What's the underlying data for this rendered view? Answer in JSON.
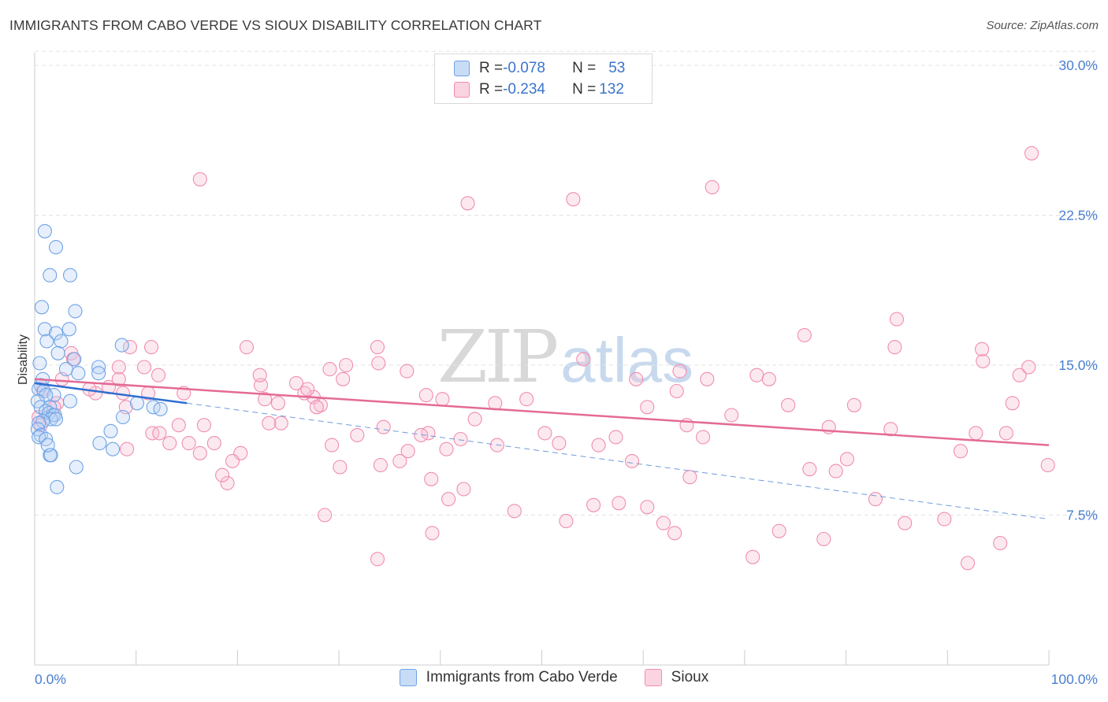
{
  "title": "IMMIGRANTS FROM CABO VERDE VS SIOUX DISABILITY CORRELATION CHART",
  "source": "Source: ZipAtlas.com",
  "watermark": {
    "zip": "ZIP",
    "atlas": "atlas"
  },
  "legend_top": {
    "rows": [
      {
        "r_label": "R = ",
        "r_value": "-0.078",
        "n_label": "N = ",
        "n_value": "53",
        "color": "#6fa3e6"
      },
      {
        "r_label": "R = ",
        "r_value": "-0.234",
        "n_label": "N = ",
        "n_value": "132",
        "color": "#f08db0"
      }
    ]
  },
  "legend_bottom": [
    {
      "label": "Immigrants from Cabo Verde",
      "color": "#6fa3e6"
    },
    {
      "label": "Sioux",
      "color": "#f08db0"
    }
  ],
  "chart_data": {
    "type": "scatter",
    "title": "IMMIGRANTS FROM CABO VERDE VS SIOUX DISABILITY CORRELATION CHART",
    "xlabel": "",
    "ylabel": "Disability",
    "xlim": [
      0,
      100
    ],
    "ylim": [
      0,
      31
    ],
    "x_tick_labels": [
      "0.0%",
      "100.0%"
    ],
    "y_ticks": [
      7.5,
      15.0,
      22.5,
      30.0
    ],
    "y_tick_labels": [
      "7.5%",
      "15.0%",
      "22.5%",
      "30.0%"
    ],
    "grid": "horizontal dashed",
    "legend_placement": "top-center and bottom",
    "series": [
      {
        "name": "Immigrants from Cabo Verde",
        "color": "#6fa3e6",
        "trend": {
          "x0": 0,
          "y0": 14.1,
          "x1": 15,
          "y1": 13.1,
          "dashed_to_x": 100,
          "dashed_to_y": 7.3
        },
        "points": [
          [
            1,
            21.7
          ],
          [
            2.1,
            20.9
          ],
          [
            1.5,
            19.5
          ],
          [
            3.5,
            19.5
          ],
          [
            0.7,
            17.9
          ],
          [
            4,
            17.7
          ],
          [
            1,
            16.8
          ],
          [
            3.4,
            16.8
          ],
          [
            2.1,
            16.6
          ],
          [
            1.2,
            16.2
          ],
          [
            2.6,
            16.2
          ],
          [
            8.6,
            16
          ],
          [
            2.3,
            15.6
          ],
          [
            3.9,
            15.3
          ],
          [
            0.5,
            15.1
          ],
          [
            6.3,
            14.9
          ],
          [
            3.1,
            14.8
          ],
          [
            6.3,
            14.6
          ],
          [
            4.3,
            14.6
          ],
          [
            0.8,
            14.3
          ],
          [
            0.6,
            14.0
          ],
          [
            0.4,
            13.8
          ],
          [
            0.9,
            13.7
          ],
          [
            1.9,
            13.5
          ],
          [
            1.1,
            13.5
          ],
          [
            0.3,
            13.2
          ],
          [
            3.5,
            13.2
          ],
          [
            10.1,
            13.1
          ],
          [
            0.6,
            12.9
          ],
          [
            1.5,
            12.9
          ],
          [
            11.7,
            12.9
          ],
          [
            12.4,
            12.8
          ],
          [
            1.1,
            12.7
          ],
          [
            1.4,
            12.6
          ],
          [
            1.8,
            12.5
          ],
          [
            2.0,
            12.5
          ],
          [
            1.6,
            12.3
          ],
          [
            8.7,
            12.4
          ],
          [
            2.1,
            12.3
          ],
          [
            0.8,
            12.2
          ],
          [
            0.4,
            12.1
          ],
          [
            0.3,
            11.8
          ],
          [
            7.5,
            11.7
          ],
          [
            0.6,
            11.5
          ],
          [
            0.4,
            11.4
          ],
          [
            1.1,
            11.3
          ],
          [
            6.4,
            11.1
          ],
          [
            7.7,
            10.8
          ],
          [
            1.5,
            10.5
          ],
          [
            1.6,
            10.5
          ],
          [
            4.1,
            9.9
          ],
          [
            2.2,
            8.9
          ],
          [
            1.3,
            11.0
          ]
        ]
      },
      {
        "name": "Sioux",
        "color": "#f08db0",
        "trend": {
          "x0": 0,
          "y0": 14.3,
          "x1": 100,
          "y1": 11.0
        },
        "points": [
          [
            98.3,
            25.6
          ],
          [
            16.3,
            24.3
          ],
          [
            66.8,
            23.9
          ],
          [
            42.7,
            23.1
          ],
          [
            53.1,
            23.3
          ],
          [
            54.1,
            15.3
          ],
          [
            59.3,
            14.3
          ],
          [
            38.6,
            13.5
          ],
          [
            71.2,
            14.5
          ],
          [
            75.9,
            16.5
          ],
          [
            27.5,
            13.4
          ],
          [
            45.4,
            13.1
          ],
          [
            36.7,
            14.7
          ],
          [
            29.1,
            14.8
          ],
          [
            40.2,
            13.3
          ],
          [
            33.8,
            15.9
          ],
          [
            51.7,
            11.1
          ],
          [
            64.3,
            12.0
          ],
          [
            65.9,
            11.4
          ],
          [
            85.0,
            17.3
          ],
          [
            84.8,
            15.9
          ],
          [
            72.4,
            14.3
          ],
          [
            93.5,
            15.2
          ],
          [
            93.4,
            15.8
          ],
          [
            63.6,
            14.7
          ],
          [
            57.3,
            11.4
          ],
          [
            78.3,
            11.9
          ],
          [
            80.1,
            10.3
          ],
          [
            84.4,
            11.8
          ],
          [
            92.8,
            11.6
          ],
          [
            58.9,
            10.2
          ],
          [
            50.3,
            11.6
          ],
          [
            38.8,
            11.6
          ],
          [
            42.0,
            11.3
          ],
          [
            45.6,
            11.0
          ],
          [
            36.8,
            10.7
          ],
          [
            34.4,
            11.9
          ],
          [
            31.8,
            11.5
          ],
          [
            36.0,
            10.2
          ],
          [
            38.1,
            11.5
          ],
          [
            33.9,
            15.1
          ],
          [
            28.2,
            13.0
          ],
          [
            26.6,
            13.6
          ],
          [
            26.9,
            13.8
          ],
          [
            30.4,
            14.3
          ],
          [
            24.3,
            12.1
          ],
          [
            23.1,
            12.1
          ],
          [
            22.3,
            14.0
          ],
          [
            19.0,
            9.1
          ],
          [
            17.7,
            11.1
          ],
          [
            20.3,
            10.6
          ],
          [
            14.7,
            13.6
          ],
          [
            15.2,
            11.1
          ],
          [
            13.3,
            11.1
          ],
          [
            11.2,
            13.6
          ],
          [
            11.5,
            15.9
          ],
          [
            8.7,
            13.6
          ],
          [
            9.4,
            15.9
          ],
          [
            8.3,
            14.3
          ],
          [
            8.3,
            14.9
          ],
          [
            10.8,
            14.9
          ],
          [
            12.2,
            14.5
          ],
          [
            7.3,
            13.9
          ],
          [
            6.0,
            13.6
          ],
          [
            5.4,
            13.8
          ],
          [
            3.6,
            15.6
          ],
          [
            3.8,
            15.3
          ],
          [
            2.7,
            14.3
          ],
          [
            2.2,
            13.1
          ],
          [
            1.9,
            12.9
          ],
          [
            0.8,
            13.8
          ],
          [
            0.4,
            12.4
          ],
          [
            0.6,
            12.0
          ],
          [
            9.0,
            12.9
          ],
          [
            9.1,
            10.8
          ],
          [
            11.6,
            11.6
          ],
          [
            12.3,
            11.6
          ],
          [
            14.2,
            12.0
          ],
          [
            16.3,
            10.6
          ],
          [
            19.5,
            10.2
          ],
          [
            16.7,
            12.0
          ],
          [
            18.5,
            9.5
          ],
          [
            22.2,
            14.5
          ],
          [
            22.7,
            13.3
          ],
          [
            20.9,
            15.9
          ],
          [
            24.0,
            13.1
          ],
          [
            27.8,
            12.9
          ],
          [
            29.3,
            11.0
          ],
          [
            30.1,
            9.9
          ],
          [
            34.1,
            10.0
          ],
          [
            28.6,
            7.5
          ],
          [
            33.8,
            5.3
          ],
          [
            39.2,
            6.6
          ],
          [
            40.8,
            8.3
          ],
          [
            42.3,
            8.8
          ],
          [
            40.6,
            10.8
          ],
          [
            47.3,
            7.7
          ],
          [
            52.4,
            7.2
          ],
          [
            55.1,
            8.0
          ],
          [
            57.6,
            8.1
          ],
          [
            60.4,
            7.9
          ],
          [
            62.0,
            7.1
          ],
          [
            63.1,
            6.6
          ],
          [
            64.6,
            9.4
          ],
          [
            70.8,
            5.4
          ],
          [
            73.4,
            6.7
          ],
          [
            77.8,
            6.3
          ],
          [
            76.4,
            9.8
          ],
          [
            79.0,
            9.7
          ],
          [
            82.9,
            8.3
          ],
          [
            85.8,
            7.1
          ],
          [
            89.7,
            7.3
          ],
          [
            92.0,
            5.1
          ],
          [
            95.2,
            6.1
          ],
          [
            91.3,
            10.7
          ],
          [
            95.8,
            11.6
          ],
          [
            97.1,
            14.5
          ],
          [
            96.4,
            13.1
          ],
          [
            98.0,
            14.9
          ],
          [
            99.9,
            10.0
          ],
          [
            80.8,
            13.0
          ],
          [
            74.3,
            13.0
          ],
          [
            68.7,
            12.5
          ],
          [
            66.3,
            14.3
          ],
          [
            63.3,
            13.7
          ],
          [
            60.4,
            12.9
          ],
          [
            55.6,
            11.0
          ],
          [
            48.5,
            13.3
          ],
          [
            43.4,
            12.3
          ],
          [
            39.1,
            9.3
          ],
          [
            30.7,
            15.0
          ],
          [
            25.8,
            14.1
          ]
        ]
      }
    ]
  }
}
